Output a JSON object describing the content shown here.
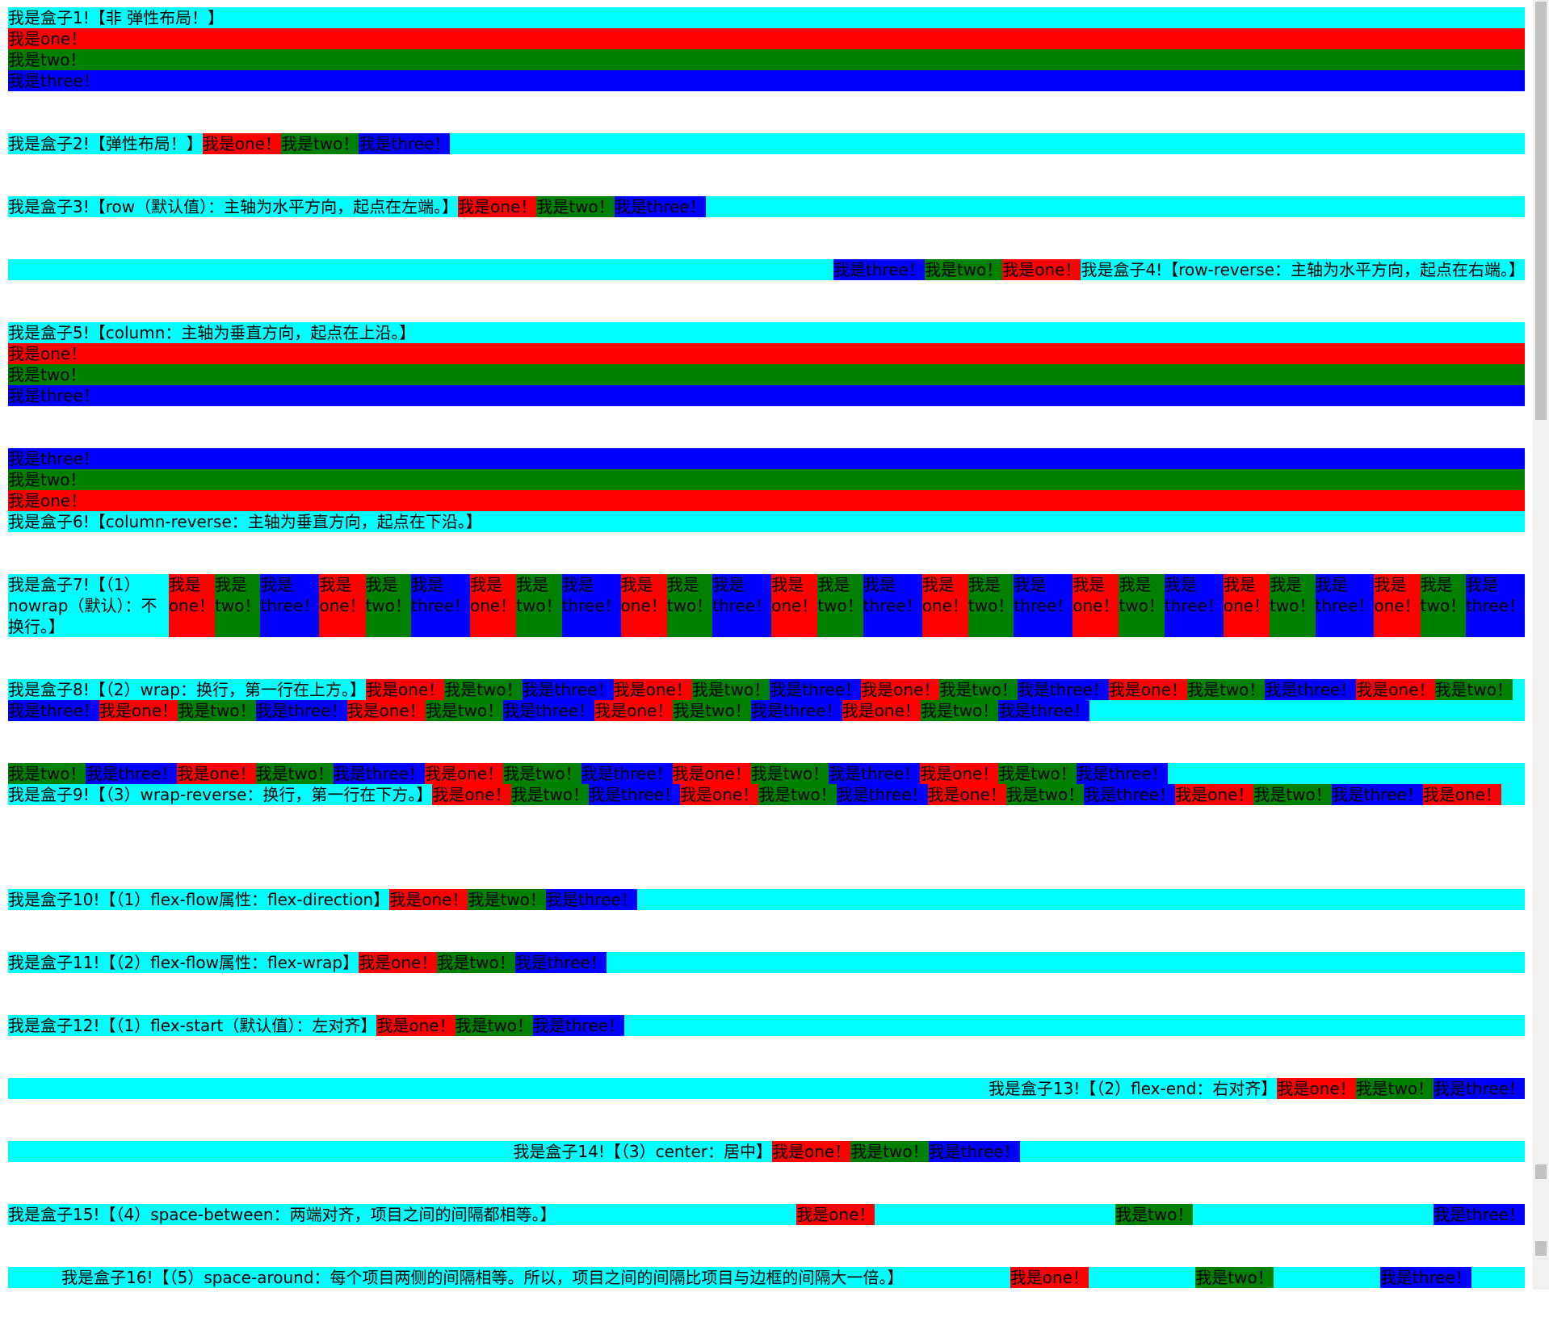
{
  "colors": {
    "box": "#00ffff",
    "one": "#ff0000",
    "two": "#008000",
    "three": "#0000ff"
  },
  "boxes": [
    {
      "label": "我是盒子1!【非 弹性布局！】",
      "items": [
        "我是one！",
        "我是two！",
        "我是three！"
      ]
    },
    {
      "label": "我是盒子2!【弹性布局！】",
      "items": [
        "我是one！",
        "我是two！",
        "我是three！"
      ]
    },
    {
      "label": "我是盒子3!【row（默认值）：主轴为水平方向，起点在左端。】",
      "items": [
        "我是one！",
        "我是two！",
        "我是three！"
      ]
    },
    {
      "label": "我是盒子4!【row-reverse：主轴为水平方向，起点在右端。】",
      "items": [
        "我是one！",
        "我是two！",
        "我是three！"
      ]
    },
    {
      "label": "我是盒子5!【column：主轴为垂直方向，起点在上沿。】",
      "items": [
        "我是one！",
        "我是two！",
        "我是three！"
      ]
    },
    {
      "label": "我是盒子6!【column-reverse：主轴为垂直方向，起点在下沿。】",
      "items": [
        "我是one！",
        "我是two！",
        "我是three！"
      ]
    },
    {
      "label": "我是盒子7!【（1）nowrap（默认）：不换行。】",
      "items": [
        "我是one！",
        "我是two！",
        "我是three！",
        "我是one！",
        "我是two！",
        "我是three！",
        "我是one！",
        "我是two！",
        "我是three！",
        "我是one！",
        "我是two！",
        "我是three！",
        "我是one！",
        "我是two！",
        "我是three！",
        "我是one！",
        "我是two！",
        "我是three！",
        "我是one！",
        "我是two！",
        "我是three！",
        "我是one！",
        "我是two！",
        "我是three！",
        "我是one！",
        "我是two！",
        "我是three！"
      ]
    },
    {
      "label": "我是盒子8!【（2）wrap：换行，第一行在上方。】",
      "items": [
        "我是one！",
        "我是two！",
        "我是three！",
        "我是one！",
        "我是two！",
        "我是three！",
        "我是one！",
        "我是two！",
        "我是three！",
        "我是one！",
        "我是two！",
        "我是three！",
        "我是one！",
        "我是two！",
        "我是three！",
        "我是one！",
        "我是two！",
        "我是three！",
        "我是one！",
        "我是two！",
        "我是three！",
        "我是one！",
        "我是two！",
        "我是three！",
        "我是one！",
        "我是two！",
        "我是three！"
      ]
    },
    {
      "label": "我是盒子9!【（3）wrap-reverse：换行，第一行在下方。】",
      "items": [
        "我是one！",
        "我是two！",
        "我是three！",
        "我是one！",
        "我是two！",
        "我是three！",
        "我是one！",
        "我是two！",
        "我是three！",
        "我是one！",
        "我是two！",
        "我是three！",
        "我是one！",
        "我是two！",
        "我是three！",
        "我是one！",
        "我是two！",
        "我是three！",
        "我是one！",
        "我是two！",
        "我是three！",
        "我是one！",
        "我是two！",
        "我是three！",
        "我是one！",
        "我是two！",
        "我是three！"
      ]
    },
    {
      "label": "我是盒子10!【（1）flex-flow属性：flex-direction】",
      "items": [
        "我是one！",
        "我是two！",
        "我是three！"
      ]
    },
    {
      "label": "我是盒子11!【（2）flex-flow属性：flex-wrap】",
      "items": [
        "我是one！",
        "我是two！",
        "我是three！"
      ]
    },
    {
      "label": "我是盒子12!【（1）flex-start（默认值）：左对齐】",
      "items": [
        "我是one！",
        "我是two！",
        "我是three！"
      ]
    },
    {
      "label": "我是盒子13!【（2）flex-end：右对齐】",
      "items": [
        "我是one！",
        "我是two！",
        "我是three！"
      ]
    },
    {
      "label": "我是盒子14!【（3）center：居中】",
      "items": [
        "我是one！",
        "我是two！",
        "我是three！"
      ]
    },
    {
      "label": "我是盒子15!【（4）space-between：两端对齐，项目之间的间隔都相等。】",
      "items": [
        "我是one！",
        "我是two！",
        "我是three！"
      ]
    },
    {
      "label": "我是盒子16!【（5）space-around：每个项目两侧的间隔相等。所以，项目之间的间隔比项目与边框的间隔大一倍。】",
      "items": [
        "我是one！",
        "我是two！",
        "我是three！"
      ]
    }
  ],
  "scrollbar": {
    "position_percent": 0
  }
}
